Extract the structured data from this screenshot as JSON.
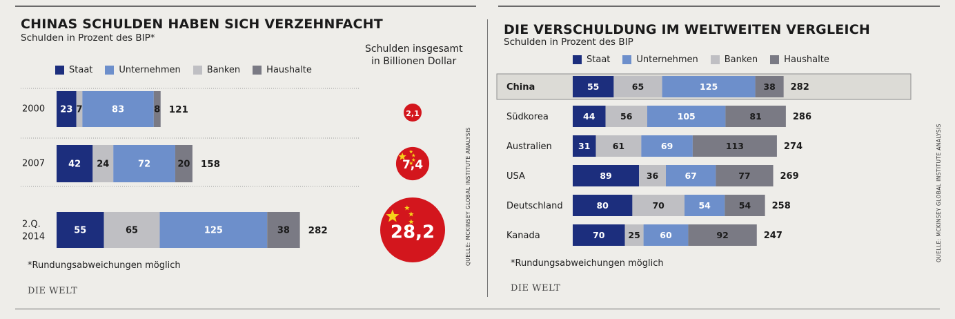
{
  "colors": {
    "staat": "#1c2e7d",
    "unternehmen": "#6d8fcb",
    "banken": "#bfbfc3",
    "haushalte": "#7a7a84",
    "bubble": "#d3161d",
    "star": "#f6d21a",
    "highlight_row": "#dcdbd6"
  },
  "left": {
    "title": "CHINAS SCHULDEN HABEN SICH VERZEHNFACHT",
    "subtitle": "Schulden in Prozent des BIP*",
    "legend": [
      {
        "key": "staat",
        "label": "Staat"
      },
      {
        "key": "unternehmen",
        "label": "Unternehmen"
      },
      {
        "key": "banken",
        "label": "Banken"
      },
      {
        "key": "haushalte",
        "label": "Haushalte"
      }
    ],
    "bubble_header": [
      "Schulden insgesamt",
      "in Billionen Dollar"
    ],
    "footnote": "*Rundungsabweichungen möglich",
    "brand": "DIE WELT",
    "source": "QUELLE: MCKINSEY GLOBAL INSTITUTE ANALYSIS"
  },
  "right": {
    "title": "DIE VERSCHULDUNG IM WELTWEITEN VERGLEICH",
    "subtitle": "Schulden in Prozent des BIP",
    "legend": [
      {
        "key": "staat",
        "label": "Staat"
      },
      {
        "key": "unternehmen",
        "label": "Unternehmen"
      },
      {
        "key": "banken",
        "label": "Banken"
      },
      {
        "key": "haushalte",
        "label": "Haushalte"
      }
    ],
    "footnote": "*Rundungsabweichungen möglich",
    "brand": "DIE WELT",
    "source": "QUELLE: MCKINSEY GLOBAL INSTITUTE ANALYSIS"
  },
  "chart_data": [
    {
      "type": "bar",
      "orientation": "horizontal",
      "stacked": true,
      "title": "CHINAS SCHULDEN HABEN SICH VERZEHNFACHT",
      "subtitle": "Schulden in Prozent des BIP*",
      "categories": [
        "2000",
        "2007",
        "2.Q. 2014"
      ],
      "series": [
        {
          "name": "Staat",
          "key": "staat",
          "values": [
            23,
            42,
            55
          ]
        },
        {
          "name": "Banken",
          "key": "banken",
          "values": [
            7,
            24,
            65
          ]
        },
        {
          "name": "Unternehmen",
          "key": "unternehmen",
          "values": [
            83,
            72,
            125
          ]
        },
        {
          "name": "Haushalte",
          "key": "haushalte",
          "values": [
            8,
            20,
            38
          ]
        }
      ],
      "totals": [
        121,
        158,
        282
      ],
      "total_debt_trillion_usd": [
        2.1,
        7.4,
        28.2
      ],
      "total_debt_labels": [
        "2,1",
        "7,4",
        "28,2"
      ],
      "legend": "top"
    },
    {
      "type": "bar",
      "orientation": "horizontal",
      "stacked": true,
      "title": "DIE VERSCHULDUNG IM WELTWEITEN VERGLEICH",
      "subtitle": "Schulden in Prozent des BIP",
      "categories": [
        "China",
        "Südkorea",
        "Australien",
        "USA",
        "Deutschland",
        "Kanada"
      ],
      "highlight": "China",
      "series": [
        {
          "name": "Staat",
          "key": "staat",
          "values": [
            55,
            44,
            31,
            89,
            80,
            70
          ]
        },
        {
          "name": "Banken",
          "key": "banken",
          "values": [
            65,
            56,
            61,
            36,
            70,
            25
          ]
        },
        {
          "name": "Unternehmen",
          "key": "unternehmen",
          "values": [
            125,
            105,
            69,
            67,
            54,
            60
          ]
        },
        {
          "name": "Haushalte",
          "key": "haushalte",
          "values": [
            38,
            81,
            113,
            77,
            54,
            92
          ]
        }
      ],
      "totals": [
        282,
        286,
        274,
        269,
        258,
        247
      ],
      "legend": "top"
    }
  ]
}
